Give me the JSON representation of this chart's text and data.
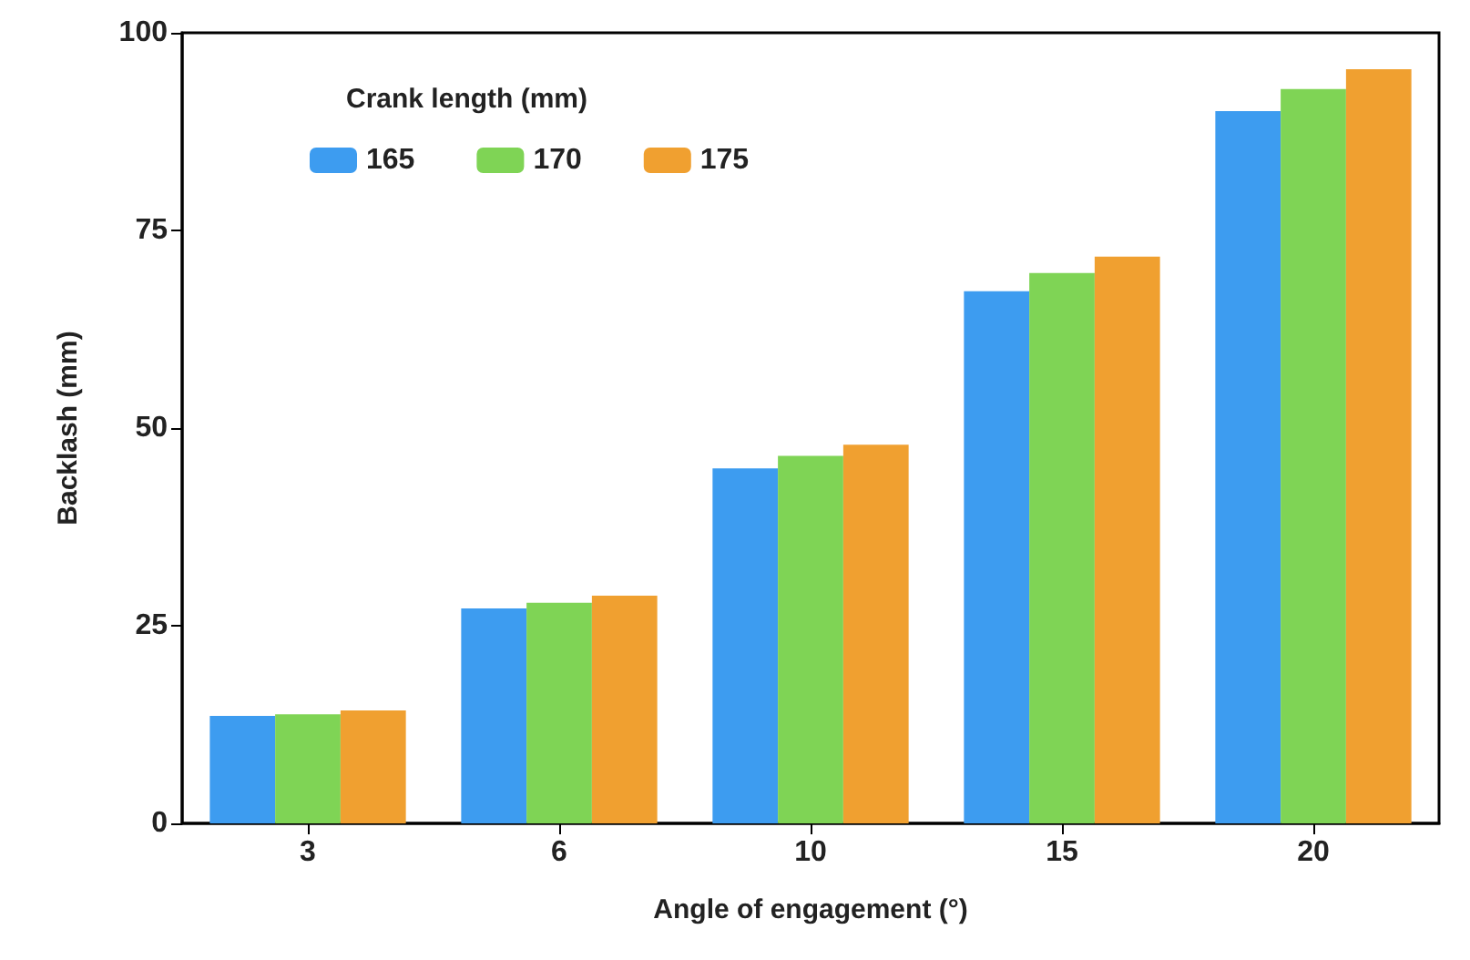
{
  "chart_data": {
    "type": "bar",
    "xlabel": "Angle of engagement (°)",
    "ylabel": "Backlash (mm)",
    "legend_title": "Crank length (mm)",
    "categories": [
      "3",
      "6",
      "10",
      "15",
      "20"
    ],
    "series": [
      {
        "name": "165",
        "color": "#3d9cf0",
        "values": [
          13.6,
          27.2,
          44.9,
          67.3,
          90.1
        ]
      },
      {
        "name": "170",
        "color": "#7fd455",
        "values": [
          13.8,
          27.9,
          46.5,
          69.6,
          92.9
        ]
      },
      {
        "name": "175",
        "color": "#f0a030",
        "values": [
          14.3,
          28.8,
          47.9,
          71.7,
          95.4
        ]
      }
    ],
    "ylim": [
      0,
      100
    ],
    "yticks": [
      0,
      25,
      50,
      75,
      100
    ],
    "grid": false,
    "legend": "top left"
  }
}
